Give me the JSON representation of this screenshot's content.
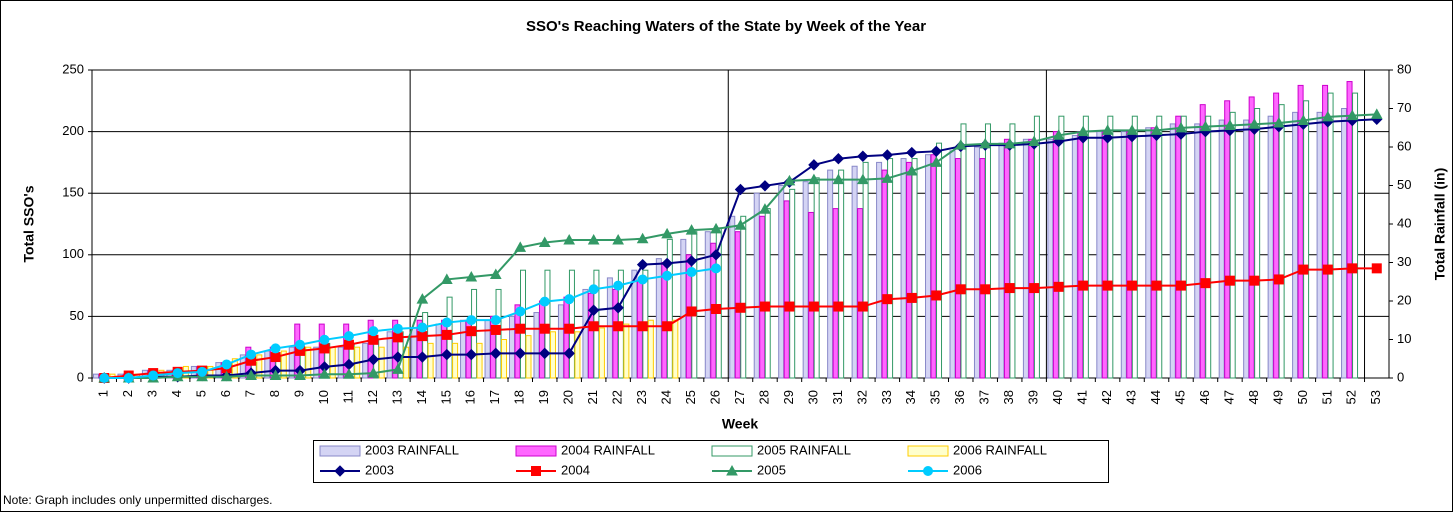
{
  "chart_data": {
    "type": "combo",
    "title": "SSO's Reaching Waters of the State by Week of the Year",
    "x_label": "Week",
    "y_label": "Total SSO's",
    "y2_label": "Total Rainfall (in)",
    "note": "Note:  Graph includes only unpermitted discharges.",
    "categories": [
      "1",
      "2",
      "3",
      "4",
      "5",
      "6",
      "7",
      "8",
      "9",
      "10",
      "11",
      "12",
      "13",
      "14",
      "15",
      "16",
      "17",
      "18",
      "19",
      "20",
      "21",
      "22",
      "23",
      "24",
      "25",
      "26",
      "27",
      "28",
      "29",
      "30",
      "31",
      "32",
      "33",
      "34",
      "35",
      "36",
      "37",
      "38",
      "39",
      "40",
      "41",
      "42",
      "43",
      "44",
      "45",
      "46",
      "47",
      "48",
      "49",
      "50",
      "51",
      "52",
      "53"
    ],
    "ylim": [
      0,
      250
    ],
    "yticks": [
      0,
      50,
      100,
      150,
      200,
      250
    ],
    "y2lim": [
      0,
      80
    ],
    "y2ticks": [
      0,
      10,
      20,
      30,
      40,
      50,
      60,
      70,
      80
    ],
    "grid": true,
    "xgrid_every": 13,
    "legend": "bottom",
    "series": [
      {
        "name": "2003 RAINFALL",
        "type": "bar",
        "axis": "y2",
        "color": "#8888c8",
        "fill": "#d4d4f4",
        "values": [
          1,
          1,
          2,
          2,
          3,
          4,
          6,
          7,
          8,
          8,
          8,
          9,
          12,
          13,
          14,
          15,
          15,
          16,
          17,
          19,
          23,
          26,
          28,
          31,
          36,
          38,
          42,
          48,
          50,
          51,
          54,
          55,
          56,
          57,
          58,
          59,
          60,
          61,
          62,
          62,
          63,
          64,
          64,
          65,
          66,
          66,
          67,
          67,
          68,
          69,
          69,
          70,
          null
        ]
      },
      {
        "name": "2004 RAINFALL",
        "type": "bar",
        "axis": "y2",
        "color": "#cc00cc",
        "fill": "#ff66ff",
        "values": [
          1,
          1,
          2,
          2,
          3,
          4,
          8,
          8,
          14,
          14,
          14,
          15,
          15,
          15,
          15,
          15,
          16,
          19,
          20,
          21,
          22,
          23,
          25,
          30,
          32,
          35,
          38,
          42,
          46,
          43,
          44,
          44,
          54,
          56,
          58,
          57,
          57,
          62,
          62,
          64,
          64,
          64,
          64,
          65,
          68,
          71,
          72,
          73,
          74,
          76,
          76,
          77,
          null
        ]
      },
      {
        "name": "2005 RAINFALL",
        "type": "bar",
        "axis": "y2",
        "color": "#339966",
        "fill": "#ffffff",
        "values": [
          0,
          0,
          1,
          2,
          3,
          4,
          4,
          6,
          8,
          9,
          9,
          10,
          12,
          17,
          21,
          23,
          23,
          28,
          28,
          28,
          28,
          28,
          28,
          36,
          38,
          39,
          42,
          44,
          49,
          52,
          54,
          56,
          57,
          57,
          61,
          66,
          66,
          66,
          68,
          68,
          68,
          68,
          68,
          68,
          68,
          68,
          69,
          70,
          71,
          72,
          74,
          74,
          null
        ]
      },
      {
        "name": "2006 RAINFALL",
        "type": "bar",
        "axis": "y2",
        "color": "#ffcc00",
        "fill": "#ffffcc",
        "values": [
          1,
          1,
          2,
          3,
          3,
          5,
          6,
          7,
          8,
          8,
          8,
          8,
          8,
          9,
          9,
          9,
          10,
          11,
          12,
          12,
          13,
          14,
          15,
          15,
          null,
          null,
          null,
          null,
          null,
          null,
          null,
          null,
          null,
          null,
          null,
          null,
          null,
          null,
          null,
          null,
          null,
          null,
          null,
          null,
          null,
          null,
          null,
          null,
          null,
          null,
          null,
          null,
          null
        ]
      },
      {
        "name": "2003",
        "type": "line",
        "marker": "diamond",
        "color": "#000080",
        "values": [
          0,
          0,
          1,
          1,
          2,
          2,
          4,
          6,
          6,
          9,
          11,
          15,
          17,
          17,
          19,
          19,
          20,
          20,
          20,
          20,
          55,
          57,
          92,
          93,
          95,
          100,
          153,
          156,
          159,
          173,
          178,
          180,
          181,
          183,
          184,
          188,
          189,
          189,
          190,
          192,
          195,
          195,
          196,
          197,
          198,
          200,
          201,
          202,
          204,
          206,
          208,
          209,
          210
        ]
      },
      {
        "name": "2004",
        "type": "line",
        "marker": "square",
        "color": "#ff0000",
        "values": [
          0,
          2,
          4,
          5,
          6,
          8,
          14,
          17,
          22,
          24,
          27,
          31,
          33,
          34,
          35,
          38,
          39,
          40,
          40,
          40,
          42,
          42,
          42,
          42,
          54,
          56,
          57,
          58,
          58,
          58,
          58,
          58,
          64,
          65,
          67,
          72,
          72,
          73,
          73,
          74,
          75,
          75,
          75,
          75,
          75,
          77,
          79,
          79,
          80,
          88,
          88,
          89,
          89
        ]
      },
      {
        "name": "2005",
        "type": "line",
        "marker": "triangle",
        "color": "#339966",
        "values": [
          0,
          0,
          0,
          1,
          1,
          1,
          2,
          2,
          2,
          3,
          3,
          4,
          7,
          64,
          80,
          82,
          84,
          106,
          110,
          112,
          112,
          112,
          113,
          117,
          120,
          121,
          124,
          137,
          160,
          161,
          161,
          161,
          162,
          168,
          175,
          189,
          190,
          190,
          192,
          197,
          200,
          201,
          201,
          201,
          203,
          204,
          205,
          206,
          207,
          209,
          212,
          213,
          214
        ]
      },
      {
        "name": "2006",
        "type": "line",
        "marker": "circle",
        "color": "#00ccff",
        "values": [
          0,
          0,
          2,
          4,
          5,
          11,
          19,
          24,
          27,
          31,
          34,
          38,
          40,
          41,
          45,
          47,
          47,
          54,
          62,
          64,
          72,
          75,
          80,
          83,
          86,
          89,
          null,
          null,
          null,
          null,
          null,
          null,
          null,
          null,
          null,
          null,
          null,
          null,
          null,
          null,
          null,
          null,
          null,
          null,
          null,
          null,
          null,
          null,
          null,
          null,
          null,
          null,
          null
        ]
      }
    ]
  }
}
